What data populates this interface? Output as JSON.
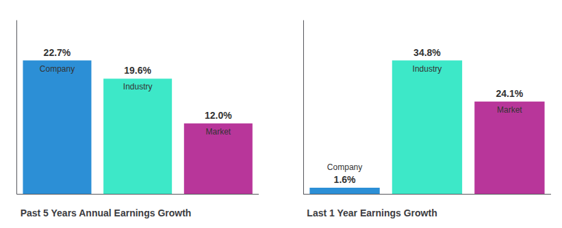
{
  "chart_data": [
    {
      "type": "bar",
      "title": "Past 5 Years Annual Earnings Growth",
      "categories": [
        "Company",
        "Industry",
        "Market"
      ],
      "values": [
        22.7,
        19.6,
        12.0
      ],
      "value_labels": [
        "22.7%",
        "19.6%",
        "12.0%"
      ],
      "colors": [
        "#2c8fd6",
        "#3de8c8",
        "#b8369a"
      ],
      "ylim": [
        0,
        29.51
      ],
      "grid": false,
      "tick_labels": false,
      "data_labels": true
    },
    {
      "type": "bar",
      "title": "Last 1 Year Earnings Growth",
      "categories": [
        "Company",
        "Industry",
        "Market"
      ],
      "values": [
        1.6,
        34.8,
        24.1
      ],
      "value_labels": [
        "1.6%",
        "34.8%",
        "24.1%"
      ],
      "colors": [
        "#2c8fd6",
        "#3de8c8",
        "#b8369a"
      ],
      "ylim": [
        0,
        45.24
      ],
      "grid": false,
      "tick_labels": false,
      "data_labels": true
    }
  ]
}
